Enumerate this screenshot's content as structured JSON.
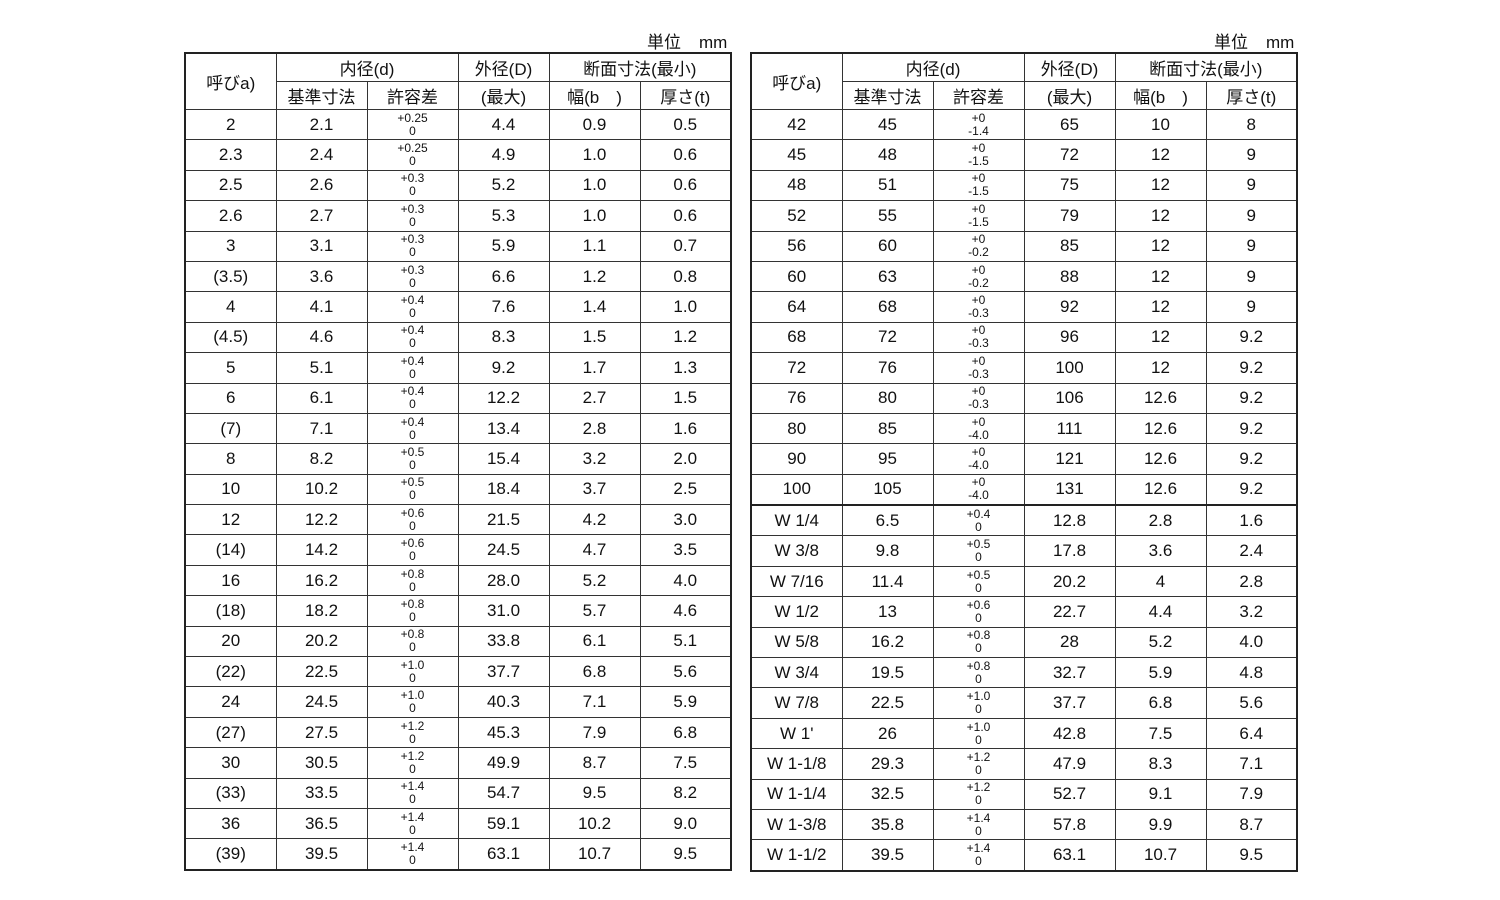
{
  "unit_label": "単位",
  "unit_value": "mm",
  "headers": {
    "nominal": "呼びa)",
    "inner_diameter": "内径(d)",
    "outer_diameter": "外径(D)",
    "section": "断面寸法(最小)",
    "basic_size": "基準寸法",
    "tolerance": "許容差",
    "max": "(最大)",
    "width": "幅(b　)",
    "thickness": "厚さ(t)"
  },
  "left_table": [
    {
      "nominal": "2",
      "d": "2.1",
      "tol_upper": "+0.25",
      "tol_lower": "0",
      "D": "4.4",
      "b": "0.9",
      "t": "0.5"
    },
    {
      "nominal": "2.3",
      "d": "2.4",
      "tol_upper": "+0.25",
      "tol_lower": "0",
      "D": "4.9",
      "b": "1.0",
      "t": "0.6"
    },
    {
      "nominal": "2.5",
      "d": "2.6",
      "tol_upper": "+0.3",
      "tol_lower": "0",
      "D": "5.2",
      "b": "1.0",
      "t": "0.6"
    },
    {
      "nominal": "2.6",
      "d": "2.7",
      "tol_upper": "+0.3",
      "tol_lower": "0",
      "D": "5.3",
      "b": "1.0",
      "t": "0.6"
    },
    {
      "nominal": "3",
      "d": "3.1",
      "tol_upper": "+0.3",
      "tol_lower": "0",
      "D": "5.9",
      "b": "1.1",
      "t": "0.7"
    },
    {
      "nominal": "(3.5)",
      "d": "3.6",
      "tol_upper": "+0.3",
      "tol_lower": "0",
      "D": "6.6",
      "b": "1.2",
      "t": "0.8"
    },
    {
      "nominal": "4",
      "d": "4.1",
      "tol_upper": "+0.4",
      "tol_lower": "0",
      "D": "7.6",
      "b": "1.4",
      "t": "1.0"
    },
    {
      "nominal": "(4.5)",
      "d": "4.6",
      "tol_upper": "+0.4",
      "tol_lower": "0",
      "D": "8.3",
      "b": "1.5",
      "t": "1.2"
    },
    {
      "nominal": "5",
      "d": "5.1",
      "tol_upper": "+0.4",
      "tol_lower": "0",
      "D": "9.2",
      "b": "1.7",
      "t": "1.3"
    },
    {
      "nominal": "6",
      "d": "6.1",
      "tol_upper": "+0.4",
      "tol_lower": "0",
      "D": "12.2",
      "b": "2.7",
      "t": "1.5"
    },
    {
      "nominal": "(7)",
      "d": "7.1",
      "tol_upper": "+0.4",
      "tol_lower": "0",
      "D": "13.4",
      "b": "2.8",
      "t": "1.6"
    },
    {
      "nominal": "8",
      "d": "8.2",
      "tol_upper": "+0.5",
      "tol_lower": "0",
      "D": "15.4",
      "b": "3.2",
      "t": "2.0"
    },
    {
      "nominal": "10",
      "d": "10.2",
      "tol_upper": "+0.5",
      "tol_lower": "0",
      "D": "18.4",
      "b": "3.7",
      "t": "2.5"
    },
    {
      "nominal": "12",
      "d": "12.2",
      "tol_upper": "+0.6",
      "tol_lower": "0",
      "D": "21.5",
      "b": "4.2",
      "t": "3.0"
    },
    {
      "nominal": "(14)",
      "d": "14.2",
      "tol_upper": "+0.6",
      "tol_lower": "0",
      "D": "24.5",
      "b": "4.7",
      "t": "3.5"
    },
    {
      "nominal": "16",
      "d": "16.2",
      "tol_upper": "+0.8",
      "tol_lower": "0",
      "D": "28.0",
      "b": "5.2",
      "t": "4.0"
    },
    {
      "nominal": "(18)",
      "d": "18.2",
      "tol_upper": "+0.8",
      "tol_lower": "0",
      "D": "31.0",
      "b": "5.7",
      "t": "4.6"
    },
    {
      "nominal": "20",
      "d": "20.2",
      "tol_upper": "+0.8",
      "tol_lower": "0",
      "D": "33.8",
      "b": "6.1",
      "t": "5.1"
    },
    {
      "nominal": "(22)",
      "d": "22.5",
      "tol_upper": "+1.0",
      "tol_lower": "0",
      "D": "37.7",
      "b": "6.8",
      "t": "5.6"
    },
    {
      "nominal": "24",
      "d": "24.5",
      "tol_upper": "+1.0",
      "tol_lower": "0",
      "D": "40.3",
      "b": "7.1",
      "t": "5.9"
    },
    {
      "nominal": "(27)",
      "d": "27.5",
      "tol_upper": "+1.2",
      "tol_lower": "0",
      "D": "45.3",
      "b": "7.9",
      "t": "6.8"
    },
    {
      "nominal": "30",
      "d": "30.5",
      "tol_upper": "+1.2",
      "tol_lower": "0",
      "D": "49.9",
      "b": "8.7",
      "t": "7.5"
    },
    {
      "nominal": "(33)",
      "d": "33.5",
      "tol_upper": "+1.4",
      "tol_lower": "0",
      "D": "54.7",
      "b": "9.5",
      "t": "8.2"
    },
    {
      "nominal": "36",
      "d": "36.5",
      "tol_upper": "+1.4",
      "tol_lower": "0",
      "D": "59.1",
      "b": "10.2",
      "t": "9.0"
    },
    {
      "nominal": "(39)",
      "d": "39.5",
      "tol_upper": "+1.4",
      "tol_lower": "0",
      "D": "63.1",
      "b": "10.7",
      "t": "9.5"
    }
  ],
  "right_table": [
    {
      "nominal": "42",
      "d": "45",
      "tol_upper": "+0",
      "tol_lower": "-1.4",
      "D": "65",
      "b": "10",
      "t": "8"
    },
    {
      "nominal": "45",
      "d": "48",
      "tol_upper": "+0",
      "tol_lower": "-1.5",
      "D": "72",
      "b": "12",
      "t": "9"
    },
    {
      "nominal": "48",
      "d": "51",
      "tol_upper": "+0",
      "tol_lower": "-1.5",
      "D": "75",
      "b": "12",
      "t": "9"
    },
    {
      "nominal": "52",
      "d": "55",
      "tol_upper": "+0",
      "tol_lower": "-1.5",
      "D": "79",
      "b": "12",
      "t": "9"
    },
    {
      "nominal": "56",
      "d": "60",
      "tol_upper": "+0",
      "tol_lower": "-0.2",
      "D": "85",
      "b": "12",
      "t": "9"
    },
    {
      "nominal": "60",
      "d": "63",
      "tol_upper": "+0",
      "tol_lower": "-0.2",
      "D": "88",
      "b": "12",
      "t": "9"
    },
    {
      "nominal": "64",
      "d": "68",
      "tol_upper": "+0",
      "tol_lower": "-0.3",
      "D": "92",
      "b": "12",
      "t": "9"
    },
    {
      "nominal": "68",
      "d": "72",
      "tol_upper": "+0",
      "tol_lower": "-0.3",
      "D": "96",
      "b": "12",
      "t": "9.2"
    },
    {
      "nominal": "72",
      "d": "76",
      "tol_upper": "+0",
      "tol_lower": "-0.3",
      "D": "100",
      "b": "12",
      "t": "9.2"
    },
    {
      "nominal": "76",
      "d": "80",
      "tol_upper": "+0",
      "tol_lower": "-0.3",
      "D": "106",
      "b": "12.6",
      "t": "9.2"
    },
    {
      "nominal": "80",
      "d": "85",
      "tol_upper": "+0",
      "tol_lower": "-4.0",
      "D": "111",
      "b": "12.6",
      "t": "9.2"
    },
    {
      "nominal": "90",
      "d": "95",
      "tol_upper": "+0",
      "tol_lower": "-4.0",
      "D": "121",
      "b": "12.6",
      "t": "9.2"
    },
    {
      "nominal": "100",
      "d": "105",
      "tol_upper": "+0",
      "tol_lower": "-4.0",
      "D": "131",
      "b": "12.6",
      "t": "9.2"
    },
    {
      "nominal": "W 1/4",
      "d": "6.5",
      "tol_upper": "+0.4",
      "tol_lower": "0",
      "D": "12.8",
      "b": "2.8",
      "t": "1.6"
    },
    {
      "nominal": "W 3/8",
      "d": "9.8",
      "tol_upper": "+0.5",
      "tol_lower": "0",
      "D": "17.8",
      "b": "3.6",
      "t": "2.4"
    },
    {
      "nominal": "W 7/16",
      "d": "11.4",
      "tol_upper": "+0.5",
      "tol_lower": "0",
      "D": "20.2",
      "b": "4",
      "t": "2.8"
    },
    {
      "nominal": "W 1/2",
      "d": "13",
      "tol_upper": "+0.6",
      "tol_lower": "0",
      "D": "22.7",
      "b": "4.4",
      "t": "3.2"
    },
    {
      "nominal": "W 5/8",
      "d": "16.2",
      "tol_upper": "+0.8",
      "tol_lower": "0",
      "D": "28",
      "b": "5.2",
      "t": "4.0"
    },
    {
      "nominal": "W 3/4",
      "d": "19.5",
      "tol_upper": "+0.8",
      "tol_lower": "0",
      "D": "32.7",
      "b": "5.9",
      "t": "4.8"
    },
    {
      "nominal": "W 7/8",
      "d": "22.5",
      "tol_upper": "+1.0",
      "tol_lower": "0",
      "D": "37.7",
      "b": "6.8",
      "t": "5.6"
    },
    {
      "nominal": "W 1'",
      "d": "26",
      "tol_upper": "+1.0",
      "tol_lower": "0",
      "D": "42.8",
      "b": "7.5",
      "t": "6.4"
    },
    {
      "nominal": "W 1-1/8",
      "d": "29.3",
      "tol_upper": "+1.2",
      "tol_lower": "0",
      "D": "47.9",
      "b": "8.3",
      "t": "7.1"
    },
    {
      "nominal": "W 1-1/4",
      "d": "32.5",
      "tol_upper": "+1.2",
      "tol_lower": "0",
      "D": "52.7",
      "b": "9.1",
      "t": "7.9"
    },
    {
      "nominal": "W 1-3/8",
      "d": "35.8",
      "tol_upper": "+1.4",
      "tol_lower": "0",
      "D": "57.8",
      "b": "9.9",
      "t": "8.7"
    },
    {
      "nominal": "W 1-1/2",
      "d": "39.5",
      "tol_upper": "+1.4",
      "tol_lower": "0",
      "D": "63.1",
      "b": "10.7",
      "t": "9.5"
    }
  ]
}
